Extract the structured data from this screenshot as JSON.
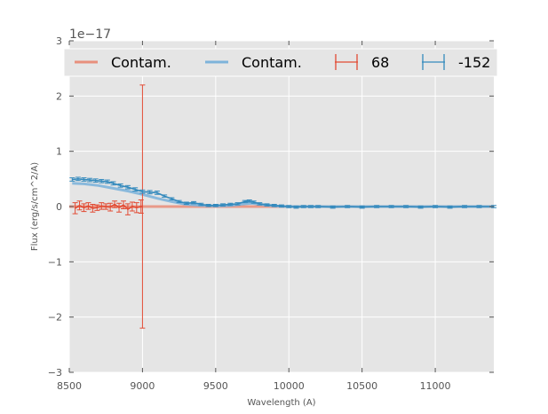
{
  "chart_data": {
    "type": "line",
    "xlabel": "Wavelength (A)",
    "ylabel": "Flux (erg/s/cm^2/A)",
    "y_offset_label": "1e−17",
    "xlim": [
      8500,
      11400
    ],
    "ylim": [
      -3,
      3
    ],
    "x_ticks": [
      8500,
      9000,
      9500,
      10000,
      10500,
      11000
    ],
    "y_ticks": [
      -3,
      -2,
      -1,
      0,
      1,
      2,
      3
    ],
    "y_tick_labels": [
      "−3",
      "−2",
      "−1",
      "0",
      "1",
      "2",
      "3"
    ],
    "grid": true,
    "legend_position": "top",
    "colors": {
      "red": "#E24A33",
      "blue": "#348ABD",
      "red_light": "#E8907D",
      "blue_light": "#7EB4DA",
      "axes_bg": "#E5E5E5"
    },
    "series": [
      {
        "name": "Contam.",
        "kind": "line",
        "color": "#E8907D",
        "x": [
          8500,
          9000,
          11400
        ],
        "y": [
          0,
          0,
          0
        ]
      },
      {
        "name": "Contam.",
        "kind": "line",
        "color": "#7EB4DA",
        "x": [
          8520,
          8600,
          8700,
          8800,
          8900,
          9000,
          9100,
          9200,
          9300,
          9400,
          9500,
          9600,
          9700,
          9750,
          9800,
          9900,
          10000,
          10500,
          11000,
          11400
        ],
        "y": [
          0.42,
          0.41,
          0.38,
          0.33,
          0.28,
          0.22,
          0.15,
          0.09,
          0.04,
          0.02,
          0.01,
          0.02,
          0.05,
          0.06,
          0.04,
          0.01,
          0.0,
          0.0,
          0.0,
          0.0
        ]
      },
      {
        "name": "68",
        "kind": "errorbar",
        "color": "#E24A33",
        "x": [
          8540,
          8570,
          8600,
          8630,
          8660,
          8690,
          8720,
          8750,
          8780,
          8810,
          8840,
          8870,
          8900,
          8930,
          8960,
          8990,
          9000
        ],
        "y": [
          -0.03,
          0.02,
          -0.02,
          0.01,
          -0.03,
          -0.02,
          0.01,
          0.0,
          -0.01,
          0.04,
          -0.02,
          0.03,
          -0.05,
          0.0,
          -0.02,
          0.0,
          0.0
        ],
        "yerr": [
          0.1,
          0.08,
          0.07,
          0.06,
          0.07,
          0.05,
          0.06,
          0.05,
          0.07,
          0.06,
          0.08,
          0.07,
          0.1,
          0.08,
          0.09,
          0.12,
          2.2
        ]
      },
      {
        "name": "-152",
        "kind": "errorbar",
        "color": "#348ABD",
        "x": [
          8520,
          8560,
          8600,
          8640,
          8680,
          8720,
          8760,
          8800,
          8850,
          8900,
          8950,
          9000,
          9050,
          9100,
          9150,
          9200,
          9250,
          9300,
          9350,
          9400,
          9450,
          9500,
          9550,
          9600,
          9650,
          9700,
          9730,
          9760,
          9800,
          9850,
          9900,
          9950,
          10000,
          10050,
          10100,
          10150,
          10200,
          10300,
          10400,
          10500,
          10600,
          10700,
          10800,
          10900,
          11000,
          11100,
          11200,
          11300,
          11400
        ],
        "y": [
          0.49,
          0.5,
          0.49,
          0.48,
          0.47,
          0.46,
          0.45,
          0.42,
          0.38,
          0.35,
          0.31,
          0.27,
          0.26,
          0.25,
          0.19,
          0.14,
          0.09,
          0.06,
          0.07,
          0.04,
          0.02,
          0.02,
          0.03,
          0.04,
          0.05,
          0.09,
          0.1,
          0.08,
          0.05,
          0.03,
          0.02,
          0.01,
          0.0,
          -0.01,
          0.0,
          0.0,
          0.0,
          -0.01,
          0.0,
          -0.01,
          0.0,
          0.0,
          0.0,
          -0.01,
          0.0,
          -0.01,
          0.0,
          0.0,
          0.0
        ],
        "yerr": [
          0.03,
          0.03,
          0.03,
          0.03,
          0.03,
          0.03,
          0.03,
          0.03,
          0.03,
          0.03,
          0.03,
          0.03,
          0.03,
          0.03,
          0.02,
          0.02,
          0.02,
          0.02,
          0.02,
          0.02,
          0.02,
          0.02,
          0.02,
          0.02,
          0.02,
          0.02,
          0.02,
          0.02,
          0.02,
          0.02,
          0.02,
          0.02,
          0.02,
          0.02,
          0.02,
          0.02,
          0.02,
          0.02,
          0.02,
          0.02,
          0.02,
          0.02,
          0.02,
          0.02,
          0.02,
          0.02,
          0.02,
          0.02,
          0.02
        ]
      }
    ]
  }
}
